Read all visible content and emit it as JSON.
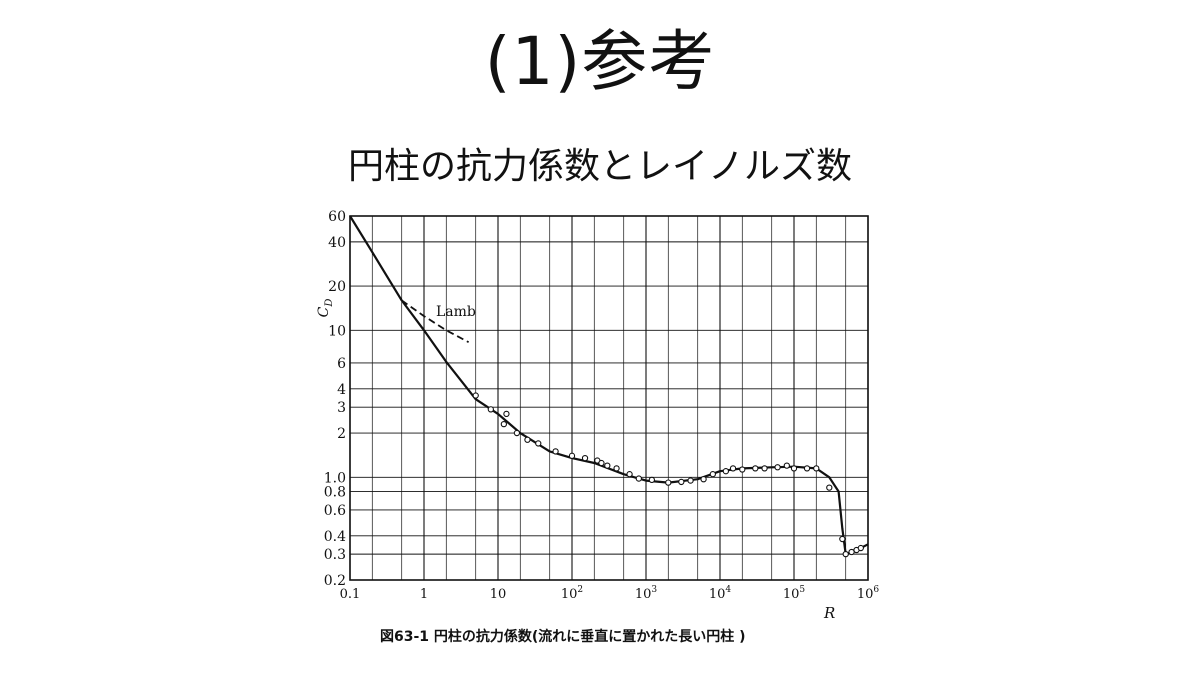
{
  "slide": {
    "title": "(1)参考",
    "subtitle": "円柱の抗力係数とレイノルズ数"
  },
  "chart_data": {
    "type": "line",
    "scale": {
      "x": "log",
      "y": "log"
    },
    "grid": true,
    "xlabel": "R",
    "ylabel": "C",
    "ylabel_subscript": "D",
    "xlim": [
      0.1,
      1000000
    ],
    "ylim": [
      0.2,
      60
    ],
    "x_ticks": [
      {
        "value": 0.1,
        "base": "0.1",
        "exp": ""
      },
      {
        "value": 1,
        "base": "1",
        "exp": ""
      },
      {
        "value": 10,
        "base": "10",
        "exp": ""
      },
      {
        "value": 100,
        "base": "10",
        "exp": "2"
      },
      {
        "value": 1000,
        "base": "10",
        "exp": "3"
      },
      {
        "value": 10000,
        "base": "10",
        "exp": "4"
      },
      {
        "value": 100000,
        "base": "10",
        "exp": "5"
      },
      {
        "value": 1000000,
        "base": "10",
        "exp": "6"
      }
    ],
    "y_ticks": [
      {
        "value": 60,
        "label": "60"
      },
      {
        "value": 40,
        "label": "40"
      },
      {
        "value": 20,
        "label": "20"
      },
      {
        "value": 10,
        "label": "10"
      },
      {
        "value": 6,
        "label": "6"
      },
      {
        "value": 4,
        "label": "4"
      },
      {
        "value": 3,
        "label": "3"
      },
      {
        "value": 2,
        "label": "2"
      },
      {
        "value": 1.0,
        "label": "1.0"
      },
      {
        "value": 0.8,
        "label": "0.8"
      },
      {
        "value": 0.6,
        "label": "0.6"
      },
      {
        "value": 0.4,
        "label": "0.4"
      },
      {
        "value": 0.3,
        "label": "0.3"
      },
      {
        "value": 0.2,
        "label": "0.2"
      }
    ],
    "series": [
      {
        "role": "curve",
        "style": "solid",
        "x": [
          0.1,
          0.2,
          0.5,
          1,
          2,
          5,
          10,
          20,
          50,
          100,
          200,
          500,
          1000,
          2000,
          5000,
          10000,
          20000,
          50000,
          100000,
          200000,
          300000,
          400000,
          450000,
          500000,
          600000,
          800000,
          1000000
        ],
        "y": [
          60,
          34,
          16,
          10,
          6.1,
          3.4,
          2.7,
          2.0,
          1.5,
          1.35,
          1.25,
          1.05,
          0.95,
          0.92,
          0.97,
          1.1,
          1.15,
          1.17,
          1.18,
          1.15,
          1.0,
          0.8,
          0.45,
          0.3,
          0.31,
          0.33,
          0.35
        ]
      },
      {
        "name": "Lamb",
        "style": "dashed",
        "x": [
          0.5,
          1,
          2,
          4
        ],
        "y": [
          16,
          12.5,
          10,
          8.3
        ]
      },
      {
        "role": "measurements",
        "style": "markers",
        "x": [
          5,
          8,
          13,
          12,
          18,
          25,
          35,
          60,
          100,
          150,
          220,
          250,
          300,
          400,
          600,
          800,
          1200,
          2000,
          3000,
          4000,
          6000,
          8000,
          12000,
          15000,
          20000,
          30000,
          40000,
          60000,
          80000,
          100000,
          150000,
          200000,
          300000,
          450000,
          500000,
          600000,
          700000,
          800000
        ],
        "y": [
          3.6,
          2.9,
          2.7,
          2.3,
          2.0,
          1.8,
          1.7,
          1.5,
          1.4,
          1.35,
          1.3,
          1.25,
          1.2,
          1.15,
          1.05,
          0.98,
          0.96,
          0.92,
          0.93,
          0.95,
          0.97,
          1.05,
          1.1,
          1.15,
          1.13,
          1.15,
          1.15,
          1.17,
          1.2,
          1.15,
          1.15,
          1.15,
          0.85,
          0.38,
          0.3,
          0.31,
          0.32,
          0.33
        ]
      }
    ],
    "annotation": "Lamb",
    "caption": "図63-1  円柱の抗力係数(流れに垂直に置かれた長い円柱 )"
  }
}
